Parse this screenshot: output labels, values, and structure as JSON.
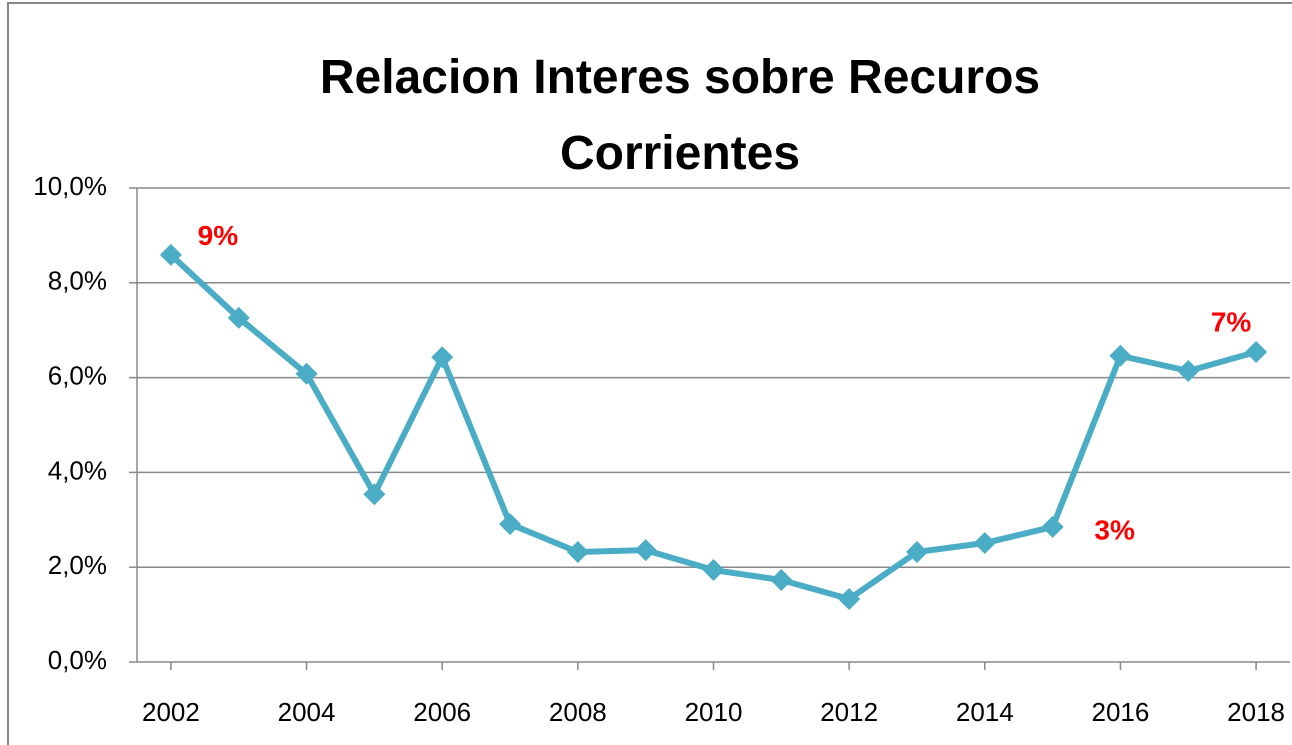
{
  "chart_data": {
    "type": "line",
    "title": "Relacion Interes sobre Recuros Corrientes",
    "x": [
      2002,
      2003,
      2004,
      2005,
      2006,
      2007,
      2008,
      2009,
      2010,
      2011,
      2012,
      2013,
      2014,
      2015,
      2016,
      2017,
      2018
    ],
    "series": [
      {
        "name": "Relacion",
        "color": "#4bacc6",
        "values": [
          8.59,
          7.26,
          6.08,
          3.54,
          6.43,
          2.91,
          2.32,
          2.36,
          1.94,
          1.73,
          1.33,
          2.32,
          2.51,
          2.85,
          6.46,
          6.14,
          6.54
        ],
        "value_labels": [
          "9%",
          null,
          null,
          null,
          null,
          null,
          null,
          null,
          null,
          null,
          null,
          null,
          null,
          "3%",
          null,
          null,
          "7%"
        ],
        "value_label_color": "#ff0000"
      }
    ],
    "xlim": [
      2001.5,
      2018.5
    ],
    "xticks": [
      2002,
      2004,
      2006,
      2008,
      2010,
      2012,
      2014,
      2016,
      2018
    ],
    "ylim": [
      0,
      10
    ],
    "yticks": [
      {
        "value": 0,
        "label": "0,0%"
      },
      {
        "value": 2,
        "label": "2,0%"
      },
      {
        "value": 4,
        "label": "4,0%"
      },
      {
        "value": 6,
        "label": "6,0%"
      },
      {
        "value": 8,
        "label": "8,0%"
      },
      {
        "value": 10,
        "label": "10,0%"
      }
    ],
    "grid": true
  }
}
